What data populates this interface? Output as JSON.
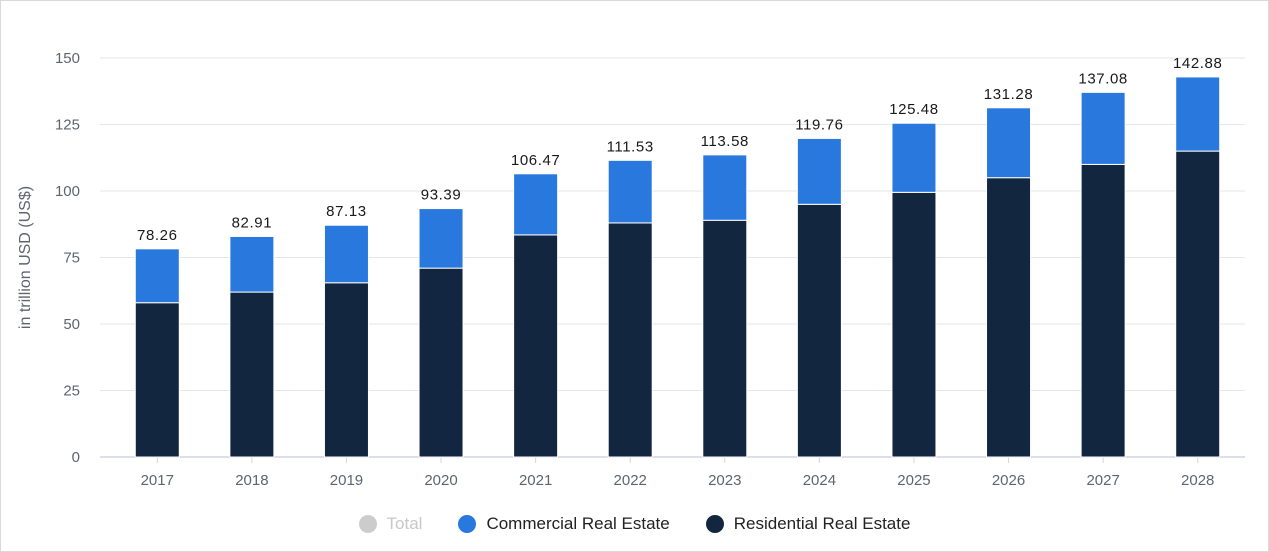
{
  "chart_data": {
    "type": "bar",
    "stacked": true,
    "categories": [
      "2017",
      "2018",
      "2019",
      "2020",
      "2021",
      "2022",
      "2023",
      "2024",
      "2025",
      "2026",
      "2027",
      "2028"
    ],
    "series": [
      {
        "name": "Residential Real Estate",
        "color": "#12263f",
        "values": [
          58,
          62,
          65.5,
          71,
          83.5,
          88,
          89,
          95,
          99.5,
          105,
          110,
          115
        ]
      },
      {
        "name": "Commercial Real Estate",
        "color": "#2878de",
        "values": [
          20.26,
          20.91,
          21.63,
          22.39,
          22.97,
          23.53,
          24.58,
          24.76,
          25.98,
          26.28,
          27.08,
          27.88
        ]
      }
    ],
    "totals": [
      "78.26",
      "82.91",
      "87.13",
      "93.39",
      "106.47",
      "111.53",
      "113.58",
      "119.76",
      "125.48",
      "131.28",
      "137.08",
      "142.88"
    ],
    "ylabel": "in trillion USD (US$)",
    "ylim": [
      0,
      150
    ],
    "yticks": [
      0,
      25,
      50,
      75,
      100,
      125,
      150
    ],
    "grid": true
  },
  "legend": {
    "items": [
      {
        "label": "Total",
        "color": "#cccccc",
        "active": false
      },
      {
        "label": "Commercial Real Estate",
        "color": "#2878de",
        "active": true
      },
      {
        "label": "Residential Real Estate",
        "color": "#12263f",
        "active": true
      }
    ]
  }
}
